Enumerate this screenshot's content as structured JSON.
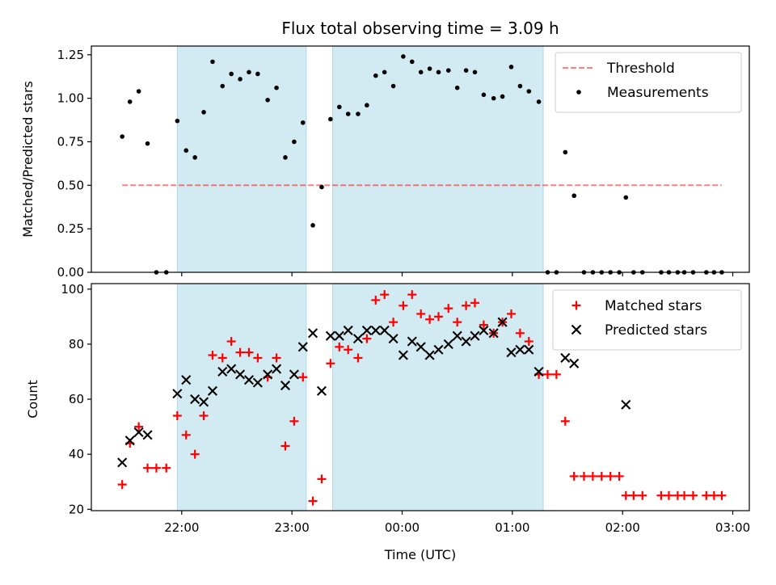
{
  "chart_data": {
    "title": "Flux total observing time = 3.09 h",
    "xlabel": "Time (UTC)",
    "x_unit": "hours UTC (values >= 24 are after midnight on the following day)",
    "xlim": [
      21.18,
      27.15
    ],
    "xticks": [
      {
        "value": 22.0,
        "label": "22:00"
      },
      {
        "value": 23.0,
        "label": "23:00"
      },
      {
        "value": 24.0,
        "label": "00:00"
      },
      {
        "value": 25.0,
        "label": "01:00"
      },
      {
        "value": 26.0,
        "label": "02:00"
      },
      {
        "value": 27.0,
        "label": "03:00"
      }
    ],
    "shaded_intervals": [
      [
        21.96,
        23.13
      ],
      [
        23.37,
        25.28
      ]
    ],
    "shade_color": "#add8e6",
    "panels": [
      {
        "id": "ratio",
        "type": "scatter",
        "ylabel": "Matched/Predicted stars",
        "ylim": [
          0,
          1.3
        ],
        "yticks": [
          {
            "value": 0.0,
            "label": "0.00"
          },
          {
            "value": 0.25,
            "label": "0.25"
          },
          {
            "value": 0.5,
            "label": "0.50"
          },
          {
            "value": 0.75,
            "label": "0.75"
          },
          {
            "value": 1.0,
            "label": "1.00"
          },
          {
            "value": 1.25,
            "label": "1.25"
          }
        ],
        "legend_position": "top-right",
        "threshold": {
          "name": "Threshold",
          "y": 0.5,
          "x": [
            21.46,
            26.9
          ],
          "color": "#ff0000",
          "alpha": 0.5,
          "style": "dashed"
        },
        "series": [
          {
            "name": "Measurements",
            "marker": "dot",
            "color": "#000000",
            "points": [
              [
                21.46,
                0.78
              ],
              [
                21.53,
                0.98
              ],
              [
                21.61,
                1.04
              ],
              [
                21.69,
                0.74
              ],
              [
                21.77,
                0.0
              ],
              [
                21.86,
                0.0
              ],
              [
                21.96,
                0.87
              ],
              [
                22.04,
                0.7
              ],
              [
                22.12,
                0.66
              ],
              [
                22.2,
                0.92
              ],
              [
                22.28,
                1.21
              ],
              [
                22.37,
                1.07
              ],
              [
                22.45,
                1.14
              ],
              [
                22.53,
                1.11
              ],
              [
                22.61,
                1.15
              ],
              [
                22.69,
                1.14
              ],
              [
                22.78,
                0.99
              ],
              [
                22.86,
                1.06
              ],
              [
                22.94,
                0.66
              ],
              [
                23.02,
                0.75
              ],
              [
                23.1,
                0.86
              ],
              [
                23.19,
                0.27
              ],
              [
                23.27,
                0.49
              ],
              [
                23.35,
                0.88
              ],
              [
                23.43,
                0.95
              ],
              [
                23.51,
                0.91
              ],
              [
                23.6,
                0.91
              ],
              [
                23.68,
                0.96
              ],
              [
                23.76,
                1.13
              ],
              [
                23.84,
                1.15
              ],
              [
                23.92,
                1.07
              ],
              [
                24.01,
                1.24
              ],
              [
                24.09,
                1.21
              ],
              [
                24.17,
                1.15
              ],
              [
                24.25,
                1.17
              ],
              [
                24.33,
                1.15
              ],
              [
                24.42,
                1.16
              ],
              [
                24.5,
                1.06
              ],
              [
                24.58,
                1.16
              ],
              [
                24.66,
                1.15
              ],
              [
                24.74,
                1.02
              ],
              [
                24.83,
                1.0
              ],
              [
                24.91,
                1.01
              ],
              [
                24.99,
                1.18
              ],
              [
                25.07,
                1.07
              ],
              [
                25.15,
                1.04
              ],
              [
                25.24,
                0.98
              ],
              [
                25.32,
                0.0
              ],
              [
                25.4,
                0.0
              ],
              [
                25.48,
                0.69
              ],
              [
                25.56,
                0.44
              ],
              [
                25.65,
                0.0
              ],
              [
                25.73,
                0.0
              ],
              [
                25.81,
                0.0
              ],
              [
                25.89,
                0.0
              ],
              [
                25.97,
                0.0
              ],
              [
                26.03,
                0.43
              ],
              [
                26.1,
                0.0
              ],
              [
                26.18,
                0.0
              ],
              [
                26.35,
                0.0
              ],
              [
                26.42,
                0.0
              ],
              [
                26.5,
                0.0
              ],
              [
                26.56,
                0.0
              ],
              [
                26.64,
                0.0
              ],
              [
                26.76,
                0.0
              ],
              [
                26.83,
                0.0
              ],
              [
                26.9,
                0.0
              ]
            ]
          }
        ]
      },
      {
        "id": "count",
        "type": "scatter",
        "ylabel": "Count",
        "ylim": [
          19.5,
          102
        ],
        "yticks": [
          {
            "value": 20,
            "label": "20"
          },
          {
            "value": 40,
            "label": "40"
          },
          {
            "value": 60,
            "label": "60"
          },
          {
            "value": 80,
            "label": "80"
          },
          {
            "value": 100,
            "label": "100"
          }
        ],
        "legend_position": "top-right",
        "series": [
          {
            "name": "Matched stars",
            "marker": "plus",
            "color": "#ff0000",
            "points": [
              [
                21.46,
                29
              ],
              [
                21.53,
                44
              ],
              [
                21.61,
                50
              ],
              [
                21.69,
                35
              ],
              [
                21.77,
                35
              ],
              [
                21.86,
                35
              ],
              [
                21.96,
                54
              ],
              [
                22.04,
                47
              ],
              [
                22.12,
                40
              ],
              [
                22.2,
                54
              ],
              [
                22.28,
                76
              ],
              [
                22.37,
                75
              ],
              [
                22.45,
                81
              ],
              [
                22.53,
                77
              ],
              [
                22.61,
                77
              ],
              [
                22.69,
                75
              ],
              [
                22.78,
                68
              ],
              [
                22.86,
                75
              ],
              [
                22.94,
                43
              ],
              [
                23.02,
                52
              ],
              [
                23.1,
                68
              ],
              [
                23.19,
                23
              ],
              [
                23.27,
                31
              ],
              [
                23.35,
                73
              ],
              [
                23.43,
                79
              ],
              [
                23.51,
                78
              ],
              [
                23.6,
                75
              ],
              [
                23.68,
                82
              ],
              [
                23.76,
                96
              ],
              [
                23.84,
                98
              ],
              [
                23.92,
                88
              ],
              [
                24.01,
                94
              ],
              [
                24.09,
                98
              ],
              [
                24.17,
                91
              ],
              [
                24.25,
                89
              ],
              [
                24.33,
                90
              ],
              [
                24.42,
                93
              ],
              [
                24.5,
                88
              ],
              [
                24.58,
                94
              ],
              [
                24.66,
                95
              ],
              [
                24.74,
                87
              ],
              [
                24.83,
                84
              ],
              [
                24.91,
                88
              ],
              [
                24.99,
                91
              ],
              [
                25.07,
                84
              ],
              [
                25.15,
                81
              ],
              [
                25.24,
                69
              ],
              [
                25.32,
                69
              ],
              [
                25.4,
                69
              ],
              [
                25.48,
                52
              ],
              [
                25.56,
                32
              ],
              [
                25.65,
                32
              ],
              [
                25.73,
                32
              ],
              [
                25.81,
                32
              ],
              [
                25.89,
                32
              ],
              [
                25.97,
                32
              ],
              [
                26.03,
                25
              ],
              [
                26.1,
                25
              ],
              [
                26.18,
                25
              ],
              [
                26.35,
                25
              ],
              [
                26.42,
                25
              ],
              [
                26.5,
                25
              ],
              [
                26.56,
                25
              ],
              [
                26.64,
                25
              ],
              [
                26.76,
                25
              ],
              [
                26.83,
                25
              ],
              [
                26.9,
                25
              ]
            ]
          },
          {
            "name": "Predicted stars",
            "marker": "x",
            "color": "#000000",
            "points": [
              [
                21.46,
                37
              ],
              [
                21.53,
                45
              ],
              [
                21.61,
                48
              ],
              [
                21.69,
                47
              ],
              [
                21.96,
                62
              ],
              [
                22.04,
                67
              ],
              [
                22.12,
                60
              ],
              [
                22.2,
                59
              ],
              [
                22.28,
                63
              ],
              [
                22.37,
                70
              ],
              [
                22.45,
                71
              ],
              [
                22.53,
                69
              ],
              [
                22.61,
                67
              ],
              [
                22.69,
                66
              ],
              [
                22.78,
                69
              ],
              [
                22.86,
                71
              ],
              [
                22.94,
                65
              ],
              [
                23.02,
                69
              ],
              [
                23.1,
                79
              ],
              [
                23.19,
                84
              ],
              [
                23.27,
                63
              ],
              [
                23.35,
                83
              ],
              [
                23.43,
                83
              ],
              [
                23.51,
                85
              ],
              [
                23.6,
                82
              ],
              [
                23.68,
                85
              ],
              [
                23.76,
                85
              ],
              [
                23.84,
                85
              ],
              [
                23.92,
                82
              ],
              [
                24.01,
                76
              ],
              [
                24.09,
                81
              ],
              [
                24.17,
                79
              ],
              [
                24.25,
                76
              ],
              [
                24.33,
                78
              ],
              [
                24.42,
                80
              ],
              [
                24.5,
                83
              ],
              [
                24.58,
                81
              ],
              [
                24.66,
                83
              ],
              [
                24.74,
                85
              ],
              [
                24.83,
                84
              ],
              [
                24.91,
                88
              ],
              [
                24.99,
                77
              ],
              [
                25.07,
                78
              ],
              [
                25.15,
                78
              ],
              [
                25.24,
                70
              ],
              [
                25.48,
                75
              ],
              [
                25.56,
                73
              ],
              [
                26.03,
                58
              ]
            ]
          }
        ]
      }
    ]
  }
}
